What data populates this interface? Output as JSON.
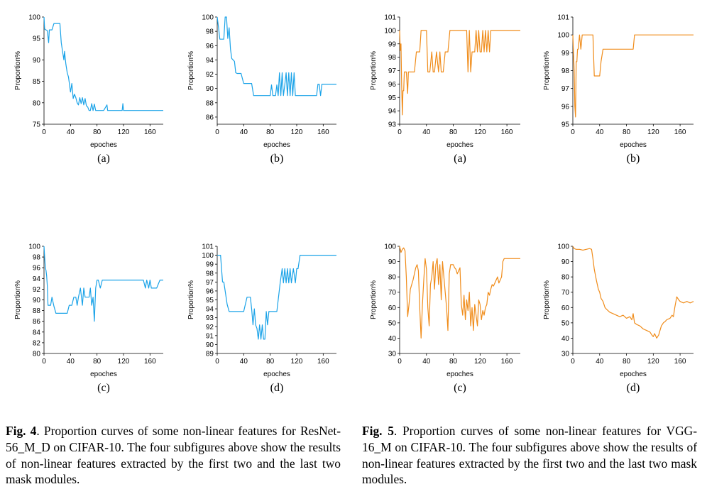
{
  "panels": [
    {
      "id": "fig4a",
      "letter": "(a)",
      "color": "#1ba3e8"
    },
    {
      "id": "fig4b",
      "letter": "(b)",
      "color": "#1ba3e8"
    },
    {
      "id": "fig4c",
      "letter": "(c)",
      "color": "#1ba3e8"
    },
    {
      "id": "fig4d",
      "letter": "(d)",
      "color": "#1ba3e8"
    },
    {
      "id": "fig5a",
      "letter": "(a)",
      "color": "#f08c1a"
    },
    {
      "id": "fig5b",
      "letter": "(b)",
      "color": "#f08c1a"
    },
    {
      "id": "fig5c",
      "letter": "(c)",
      "color": "#f08c1a"
    },
    {
      "id": "fig5d",
      "letter": "(d)",
      "color": "#f08c1a"
    }
  ],
  "chart_data": [
    {
      "id": "fig4a",
      "type": "line",
      "xlabel": "epoches",
      "ylabel": "Proportion%",
      "xlim": [
        0,
        180
      ],
      "ylim": [
        75,
        100
      ],
      "xticks": [
        0,
        40,
        80,
        120,
        160
      ],
      "yticks": [
        75,
        80,
        85,
        90,
        95,
        100
      ],
      "x": [
        0,
        1,
        3,
        5,
        7,
        8,
        10,
        12,
        15,
        17,
        20,
        22,
        24,
        26,
        28,
        30,
        31,
        33,
        35,
        37,
        40,
        42,
        44,
        46,
        48,
        50,
        52,
        54,
        56,
        58,
        60,
        62,
        64,
        66,
        68,
        70,
        72,
        74,
        76,
        78,
        80,
        85,
        90,
        95,
        96,
        100,
        110,
        115,
        118,
        119,
        120,
        125,
        140,
        160,
        180
      ],
      "y": [
        100,
        97.2,
        97,
        96.8,
        94,
        97,
        97,
        97,
        98.5,
        98.5,
        98.5,
        98.5,
        98.5,
        94,
        92,
        90,
        92,
        89,
        87,
        86,
        82.5,
        84.5,
        81,
        82,
        81.2,
        80,
        79.5,
        81.2,
        79.8,
        81.2,
        79.5,
        81,
        79.3,
        79,
        78.2,
        78.2,
        79.8,
        78.2,
        79.7,
        78.2,
        78.2,
        78.2,
        78.2,
        79.5,
        78.2,
        78.2,
        78.2,
        78.2,
        78.2,
        79.8,
        78.2,
        78.2,
        78.2,
        78.2,
        78.2
      ]
    },
    {
      "id": "fig4b",
      "type": "line",
      "xlabel": "epoches",
      "ylabel": "Proportion%",
      "xlim": [
        0,
        180
      ],
      "ylim": [
        85,
        100
      ],
      "xticks": [
        0,
        40,
        80,
        120,
        160
      ],
      "yticks": [
        86,
        88,
        90,
        92,
        94,
        96,
        98,
        100
      ],
      "x": [
        0,
        2,
        4,
        6,
        8,
        10,
        12,
        14,
        16,
        18,
        20,
        22,
        24,
        26,
        28,
        30,
        32,
        34,
        36,
        40,
        45,
        50,
        52,
        55,
        60,
        70,
        80,
        82,
        84,
        86,
        88,
        90,
        92,
        94,
        96,
        98,
        100,
        102,
        104,
        106,
        108,
        110,
        112,
        114,
        116,
        118,
        120,
        125,
        130,
        140,
        150,
        152,
        154,
        156,
        158,
        160,
        170,
        180
      ],
      "y": [
        100,
        98.5,
        96.9,
        96.9,
        96.9,
        96.9,
        100,
        100,
        97,
        98.5,
        95.5,
        94.2,
        94,
        93.8,
        92.2,
        92.1,
        92.1,
        92.1,
        92.1,
        90.7,
        90.7,
        90.7,
        90.7,
        89,
        89,
        89,
        89,
        90.5,
        89,
        89,
        89,
        90.5,
        89,
        92.2,
        89,
        92.2,
        89,
        90.5,
        92.2,
        89,
        92.2,
        89,
        92.2,
        89,
        92.2,
        89,
        89,
        89,
        89,
        89,
        89,
        90.6,
        90.6,
        89,
        90.6,
        90.6,
        90.6,
        90.6
      ]
    },
    {
      "id": "fig4c",
      "type": "line",
      "xlabel": "epoches",
      "ylabel": "Proportion%",
      "xlim": [
        0,
        180
      ],
      "ylim": [
        80,
        100
      ],
      "xticks": [
        0,
        40,
        80,
        120,
        160
      ],
      "yticks": [
        80,
        82,
        84,
        86,
        88,
        90,
        92,
        94,
        96,
        98,
        100
      ],
      "x": [
        0,
        1,
        2,
        3,
        4,
        5,
        6,
        8,
        10,
        12,
        15,
        18,
        20,
        25,
        30,
        35,
        38,
        40,
        42,
        45,
        48,
        50,
        52,
        55,
        58,
        60,
        62,
        65,
        68,
        70,
        72,
        74,
        76,
        78,
        80,
        82,
        85,
        88,
        90,
        95,
        100,
        110,
        120,
        130,
        140,
        150,
        153,
        155,
        158,
        160,
        162,
        165,
        170,
        175,
        180
      ],
      "y": [
        100,
        98,
        96,
        95.5,
        94.5,
        92.5,
        89,
        89,
        89,
        90.5,
        88.8,
        87.5,
        87.5,
        87.5,
        87.5,
        87.5,
        89,
        89,
        89,
        90.5,
        90.5,
        89,
        90.5,
        92.2,
        89,
        92.2,
        90.5,
        90.5,
        90.5,
        92.2,
        89,
        90.5,
        86,
        92.2,
        93.7,
        93.7,
        92.2,
        93.7,
        93.7,
        93.7,
        93.7,
        93.7,
        93.7,
        93.7,
        93.7,
        93.7,
        92.2,
        93.7,
        92.2,
        93.7,
        92.2,
        92.2,
        92.2,
        93.7,
        93.7
      ]
    },
    {
      "id": "fig4d",
      "type": "line",
      "xlabel": "epoches",
      "ylabel": "Proportion%",
      "xlim": [
        0,
        180
      ],
      "ylim": [
        89,
        101
      ],
      "xticks": [
        0,
        40,
        80,
        120,
        160
      ],
      "yticks": [
        89,
        90,
        91,
        92,
        93,
        94,
        95,
        96,
        97,
        98,
        99,
        100,
        101
      ],
      "x": [
        0,
        3,
        5,
        8,
        10,
        12,
        15,
        18,
        20,
        25,
        30,
        35,
        40,
        45,
        50,
        52,
        54,
        56,
        58,
        60,
        62,
        64,
        66,
        68,
        70,
        72,
        74,
        76,
        78,
        80,
        85,
        90,
        95,
        98,
        100,
        102,
        104,
        106,
        108,
        110,
        112,
        115,
        118,
        120,
        122,
        125,
        130,
        140,
        160,
        180
      ],
      "y": [
        100,
        100,
        100,
        97,
        97,
        96,
        94.5,
        93.7,
        93.7,
        93.7,
        93.7,
        93.7,
        93.7,
        95.3,
        95.3,
        94,
        92.2,
        94,
        92.2,
        91.8,
        90.6,
        92.2,
        90.6,
        92.2,
        90.6,
        90.6,
        93.7,
        92.2,
        93.7,
        93.7,
        93.7,
        93.7,
        96.9,
        98.5,
        96.9,
        98.5,
        96.9,
        98.5,
        96.9,
        98.5,
        96.9,
        98.5,
        96.9,
        98.5,
        98.5,
        100,
        100,
        100,
        100,
        100
      ]
    },
    {
      "id": "fig5a",
      "type": "line",
      "xlabel": "epoches",
      "ylabel": "Proportion%",
      "xlim": [
        0,
        180
      ],
      "ylim": [
        93,
        101
      ],
      "xticks": [
        0,
        40,
        80,
        120,
        160
      ],
      "yticks": [
        93,
        94,
        95,
        96,
        97,
        98,
        99,
        100,
        101
      ],
      "x": [
        0,
        1,
        2,
        3,
        4,
        5,
        6,
        7,
        8,
        10,
        12,
        13,
        14,
        15,
        16,
        18,
        20,
        22,
        25,
        28,
        30,
        32,
        35,
        38,
        40,
        42,
        45,
        48,
        50,
        52,
        55,
        58,
        60,
        62,
        65,
        68,
        70,
        72,
        75,
        80,
        85,
        90,
        95,
        100,
        102,
        104,
        106,
        108,
        110,
        112,
        114,
        116,
        118,
        120,
        122,
        124,
        126,
        128,
        130,
        132,
        134,
        136,
        138,
        140,
        150,
        160,
        170,
        180
      ],
      "y": [
        100,
        98.5,
        99,
        96,
        93.7,
        95.5,
        95.5,
        96.9,
        96.9,
        96.9,
        95.3,
        96.9,
        96.9,
        96.9,
        96.9,
        96.9,
        96.9,
        96.9,
        98.4,
        98.4,
        98.4,
        100,
        100,
        100,
        100,
        96.9,
        96.9,
        98.4,
        96.9,
        96.9,
        98.4,
        96.9,
        98.4,
        96.9,
        96.9,
        98.4,
        98.4,
        98.4,
        100,
        100,
        100,
        100,
        100,
        100,
        96.9,
        100,
        96.9,
        98.4,
        98.4,
        98.4,
        100,
        98.4,
        100,
        98.4,
        98.4,
        100,
        98.4,
        100,
        98.4,
        100,
        98.4,
        100,
        100,
        100,
        100,
        100,
        100,
        100
      ]
    },
    {
      "id": "fig5b",
      "type": "line",
      "xlabel": "epoches",
      "ylabel": "Proportion%",
      "xlim": [
        0,
        180
      ],
      "ylim": [
        95,
        101
      ],
      "xticks": [
        0,
        40,
        80,
        120,
        160
      ],
      "yticks": [
        95,
        96,
        97,
        98,
        99,
        100,
        101
      ],
      "x": [
        0,
        1,
        2,
        3,
        4,
        5,
        6,
        7,
        8,
        10,
        12,
        14,
        16,
        18,
        20,
        25,
        30,
        32,
        35,
        40,
        42,
        45,
        50,
        60,
        70,
        80,
        90,
        92,
        95,
        100,
        120,
        140,
        160,
        180
      ],
      "y": [
        100,
        99,
        98,
        96,
        95.4,
        98.5,
        98.5,
        99.2,
        99.2,
        100,
        99.2,
        100,
        100,
        100,
        100,
        100,
        100,
        97.7,
        97.7,
        97.7,
        98.5,
        99.2,
        99.2,
        99.2,
        99.2,
        99.2,
        99.2,
        100,
        100,
        100,
        100,
        100,
        100,
        100
      ]
    },
    {
      "id": "fig5c",
      "type": "line",
      "xlabel": "epoches",
      "ylabel": "Proportion%",
      "xlim": [
        0,
        180
      ],
      "ylim": [
        30,
        100
      ],
      "xticks": [
        0,
        40,
        80,
        120,
        160
      ],
      "yticks": [
        30,
        40,
        50,
        60,
        70,
        80,
        90,
        100
      ],
      "x": [
        0,
        2,
        4,
        6,
        8,
        10,
        12,
        14,
        16,
        18,
        20,
        22,
        24,
        26,
        28,
        30,
        32,
        34,
        36,
        38,
        40,
        42,
        44,
        46,
        48,
        50,
        52,
        54,
        56,
        58,
        60,
        62,
        64,
        66,
        68,
        70,
        72,
        74,
        76,
        78,
        80,
        82,
        84,
        86,
        88,
        90,
        92,
        94,
        96,
        98,
        100,
        102,
        104,
        106,
        108,
        110,
        112,
        114,
        116,
        118,
        120,
        122,
        124,
        126,
        128,
        130,
        132,
        134,
        136,
        138,
        140,
        142,
        144,
        146,
        148,
        150,
        152,
        154,
        156,
        160,
        165,
        170,
        175,
        180
      ],
      "y": [
        100,
        96,
        98,
        99,
        97,
        80,
        54,
        62,
        72,
        75,
        78,
        82,
        86,
        88,
        84,
        60,
        40,
        62,
        78,
        92,
        85,
        60,
        48,
        75,
        80,
        90,
        72,
        88,
        92,
        75,
        88,
        65,
        90,
        80,
        70,
        60,
        45,
        82,
        88,
        88,
        88,
        86,
        85,
        82,
        84,
        86,
        62,
        55,
        68,
        52,
        65,
        58,
        70,
        48,
        60,
        45,
        62,
        55,
        48,
        65,
        62,
        52,
        58,
        55,
        60,
        62,
        70,
        68,
        72,
        75,
        74,
        76,
        78,
        80,
        76,
        78,
        80,
        90,
        92,
        92,
        92,
        92,
        92,
        92
      ]
    },
    {
      "id": "fig5d",
      "type": "line",
      "xlabel": "epoches",
      "ylabel": "Proportion%",
      "xlim": [
        0,
        180
      ],
      "ylim": [
        30,
        100
      ],
      "xticks": [
        0,
        40,
        80,
        120,
        160
      ],
      "yticks": [
        30,
        40,
        50,
        60,
        70,
        80,
        90,
        100
      ],
      "x": [
        0,
        2,
        5,
        10,
        15,
        20,
        25,
        28,
        30,
        32,
        35,
        38,
        40,
        42,
        45,
        48,
        50,
        55,
        60,
        65,
        70,
        75,
        80,
        85,
        88,
        90,
        92,
        95,
        100,
        105,
        110,
        115,
        118,
        120,
        122,
        125,
        128,
        130,
        132,
        135,
        138,
        140,
        145,
        148,
        150,
        152,
        155,
        158,
        160,
        165,
        170,
        175,
        180
      ],
      "y": [
        100,
        98.5,
        98,
        98,
        97.5,
        98,
        98.5,
        98,
        92,
        85,
        78,
        72,
        70,
        66,
        64,
        60,
        59,
        57,
        56,
        55,
        54,
        55,
        53,
        54,
        52,
        56,
        50,
        49,
        48,
        46,
        45,
        44,
        42,
        41,
        43,
        40,
        42,
        45,
        48,
        50,
        51,
        52,
        53,
        55,
        54,
        60,
        67,
        65,
        64,
        63,
        64,
        63,
        64
      ]
    }
  ],
  "captions": {
    "fig4": {
      "label": "Fig. 4",
      "text": ". Proportion curves of some non-linear features for ResNet-56_M_D on CIFAR-10. The four subfigures above show the results of non-linear features extracted by the first two and the last two mask modules."
    },
    "fig5": {
      "label": "Fig. 5",
      "text": ". Proportion curves of some non-linear features for VGG-16_M on CIFAR-10. The four subfigures above show the results of non-linear features extracted by the first two and the last two mask modules."
    }
  }
}
